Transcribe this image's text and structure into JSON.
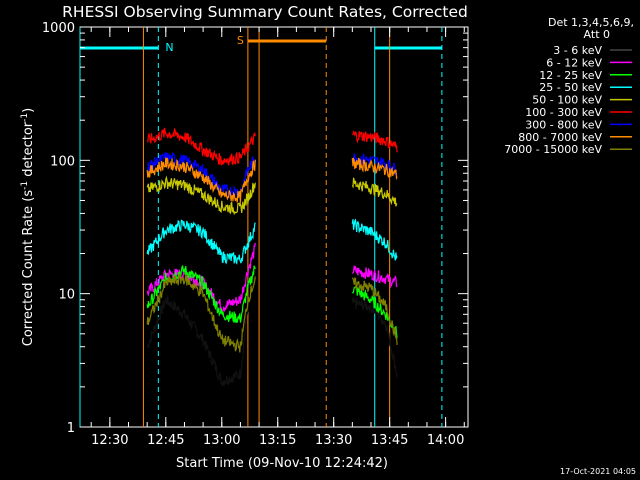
{
  "chart_data": {
    "type": "line",
    "title": "RHESSI Observing Summary Count Rates, Corrected",
    "ylabel_main": "Corrected Count Rate (s",
    "ylabel_sup1": "-1",
    "ylabel_mid": " detector",
    "ylabel_sup2": "-1",
    "ylabel_end": ")",
    "xlabel": "Start Time (09-Nov-10 12:24:42)",
    "footer": "17-Oct-2021 04:05",
    "y_scale": "log",
    "ylim": [
      1,
      1000
    ],
    "xlim": [
      "12:22",
      "14:06"
    ],
    "y_ticks": [
      "1",
      "10",
      "100",
      "1000"
    ],
    "x_ticks": [
      "12:30",
      "12:45",
      "13:00",
      "13:15",
      "13:30",
      "13:45",
      "14:00"
    ],
    "legend_header": [
      "Det 1,3,4,5,6,9,",
      "Att 0"
    ],
    "series": [
      {
        "name": "3 - 6 keV",
        "color": "#000000",
        "values": [
          [
            "12:40",
            4
          ],
          [
            "12:45",
            9
          ],
          [
            "12:50",
            7
          ],
          [
            "12:55",
            4.5
          ],
          [
            "13:00",
            2.2
          ],
          [
            "13:05",
            2.5
          ],
          [
            "13:07",
            8
          ],
          [
            "13:09",
            14
          ],
          [
            "13:35",
            8.5
          ],
          [
            "13:40",
            8
          ],
          [
            "13:44",
            6
          ],
          [
            "13:47",
            2.5
          ]
        ]
      },
      {
        "name": "6 - 12 keV",
        "color": "#ff00ff",
        "values": [
          [
            "12:40",
            10
          ],
          [
            "12:45",
            14
          ],
          [
            "12:50",
            14
          ],
          [
            "12:55",
            12
          ],
          [
            "13:00",
            8
          ],
          [
            "13:05",
            9
          ],
          [
            "13:07",
            15
          ],
          [
            "13:09",
            22
          ],
          [
            "13:35",
            15
          ],
          [
            "13:40",
            14
          ],
          [
            "13:44",
            13
          ],
          [
            "13:47",
            12
          ]
        ]
      },
      {
        "name": "12 - 25 keV",
        "color": "#00ff00",
        "values": [
          [
            "12:40",
            8
          ],
          [
            "12:45",
            13
          ],
          [
            "12:50",
            15
          ],
          [
            "12:55",
            12
          ],
          [
            "13:00",
            7
          ],
          [
            "13:05",
            6.5
          ],
          [
            "13:07",
            11
          ],
          [
            "13:09",
            16
          ],
          [
            "13:35",
            11
          ],
          [
            "13:40",
            9
          ],
          [
            "13:44",
            7
          ],
          [
            "13:47",
            5
          ]
        ]
      },
      {
        "name": "25 - 50 keV",
        "color": "#00ffff",
        "values": [
          [
            "12:40",
            20
          ],
          [
            "12:45",
            30
          ],
          [
            "12:50",
            33
          ],
          [
            "12:55",
            29
          ],
          [
            "13:00",
            19
          ],
          [
            "13:05",
            18
          ],
          [
            "13:07",
            24
          ],
          [
            "13:09",
            32
          ],
          [
            "13:35",
            33
          ],
          [
            "13:40",
            29
          ],
          [
            "13:44",
            24
          ],
          [
            "13:47",
            18
          ]
        ]
      },
      {
        "name": "50 - 100 keV",
        "color": "#c8c800",
        "values": [
          [
            "12:40",
            60
          ],
          [
            "12:45",
            68
          ],
          [
            "12:50",
            65
          ],
          [
            "12:55",
            55
          ],
          [
            "13:00",
            45
          ],
          [
            "13:05",
            43
          ],
          [
            "13:07",
            52
          ],
          [
            "13:09",
            68
          ],
          [
            "13:35",
            68
          ],
          [
            "13:40",
            62
          ],
          [
            "13:44",
            56
          ],
          [
            "13:47",
            48
          ]
        ]
      },
      {
        "name": "100 - 300 keV",
        "color": "#ff0000",
        "values": [
          [
            "12:40",
            140
          ],
          [
            "12:45",
            160
          ],
          [
            "12:50",
            150
          ],
          [
            "12:55",
            120
          ],
          [
            "13:00",
            100
          ],
          [
            "13:05",
            105
          ],
          [
            "13:07",
            125
          ],
          [
            "13:09",
            150
          ],
          [
            "13:35",
            155
          ],
          [
            "13:40",
            150
          ],
          [
            "13:44",
            140
          ],
          [
            "13:47",
            125
          ]
        ]
      },
      {
        "name": "300 - 800 keV",
        "color": "#0000ff",
        "values": [
          [
            "12:40",
            90
          ],
          [
            "12:45",
            105
          ],
          [
            "12:50",
            100
          ],
          [
            "12:55",
            85
          ],
          [
            "13:00",
            60
          ],
          [
            "13:05",
            58
          ],
          [
            "13:07",
            85
          ],
          [
            "13:09",
            105
          ],
          [
            "13:35",
            105
          ],
          [
            "13:40",
            100
          ],
          [
            "13:44",
            95
          ],
          [
            "13:47",
            85
          ]
        ]
      },
      {
        "name": "800 - 7000 keV",
        "color": "#ff8c00",
        "values": [
          [
            "12:40",
            80
          ],
          [
            "12:45",
            95
          ],
          [
            "12:50",
            90
          ],
          [
            "12:55",
            75
          ],
          [
            "13:00",
            55
          ],
          [
            "13:05",
            53
          ],
          [
            "13:07",
            75
          ],
          [
            "13:09",
            95
          ],
          [
            "13:35",
            95
          ],
          [
            "13:40",
            90
          ],
          [
            "13:44",
            85
          ],
          [
            "13:47",
            78
          ]
        ]
      },
      {
        "name": "7000 - 15000 keV",
        "color": "#808000",
        "values": [
          [
            "12:40",
            6
          ],
          [
            "12:45",
            12
          ],
          [
            "12:50",
            13
          ],
          [
            "12:55",
            10
          ],
          [
            "13:00",
            4.5
          ],
          [
            "13:05",
            4
          ],
          [
            "13:07",
            9
          ],
          [
            "13:09",
            13
          ],
          [
            "13:35",
            12
          ],
          [
            "13:40",
            11
          ],
          [
            "13:44",
            8
          ],
          [
            "13:47",
            4.5
          ]
        ]
      }
    ],
    "flag_bars": [
      {
        "label": "N",
        "color": "#00ffff",
        "start": "12:22",
        "end": "12:43"
      },
      {
        "label": "S",
        "color": "#ff8c00",
        "start": "13:07",
        "end": "13:28"
      },
      {
        "label": "",
        "color": "#00ffff",
        "start": "13:41",
        "end": "13:59"
      }
    ],
    "vertical_lines": [
      {
        "time": "12:22",
        "color": "#00ffff",
        "style": "solid"
      },
      {
        "time": "12:39",
        "color": "#ff8c00",
        "style": "solid"
      },
      {
        "time": "12:43",
        "color": "#00ffff",
        "style": "dashed"
      },
      {
        "time": "13:07",
        "color": "#ff8c00",
        "style": "solid"
      },
      {
        "time": "13:10",
        "color": "#ff8c00",
        "style": "solid"
      },
      {
        "time": "13:28",
        "color": "#ff8c00",
        "style": "dashed"
      },
      {
        "time": "13:41",
        "color": "#00ffff",
        "style": "solid"
      },
      {
        "time": "13:45",
        "color": "#ff8c00",
        "style": "solid"
      },
      {
        "time": "13:59",
        "color": "#00ffff",
        "style": "dashed"
      }
    ]
  }
}
